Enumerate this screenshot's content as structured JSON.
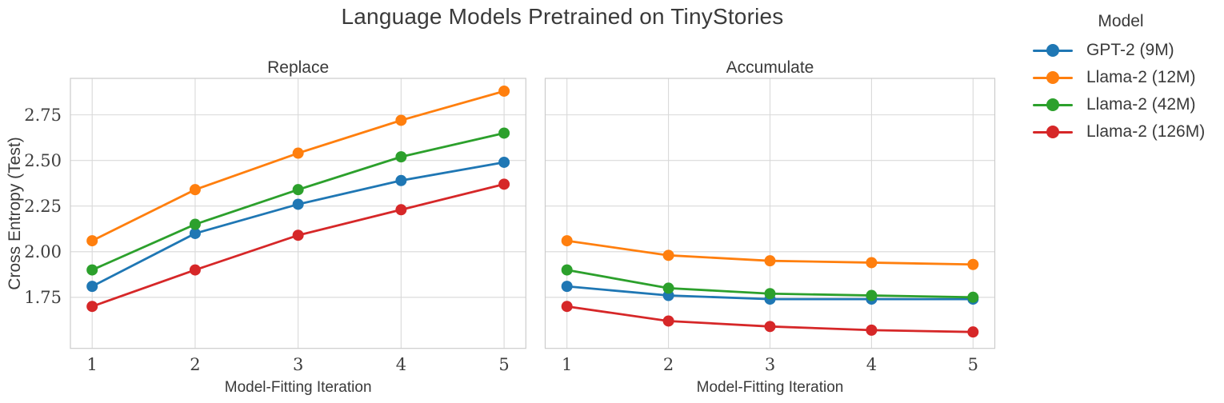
{
  "title": "Language Models Pretrained on TinyStories",
  "ylabel": "Cross Entropy (Test)",
  "legend": {
    "title": "Model",
    "entries": [
      {
        "label": "GPT-2 (9M)",
        "color": "#1f77b4"
      },
      {
        "label": "Llama-2 (12M)",
        "color": "#ff7f0e"
      },
      {
        "label": "Llama-2 (42M)",
        "color": "#2ca02c"
      },
      {
        "label": "Llama-2 (126M)",
        "color": "#d62728"
      }
    ]
  },
  "style": {
    "grid_color": "#d9d9d9",
    "spine_color": "#cccccc",
    "background": "#ffffff",
    "grid_on": true,
    "legend_position": "upper right, outside axes"
  },
  "chart_data": [
    {
      "type": "line",
      "title": "Replace",
      "xlabel": "Model-Fitting Iteration",
      "ylabel": "Cross Entropy (Test)",
      "x": [
        1,
        2,
        3,
        4,
        5
      ],
      "xtick_labels": [
        "1",
        "2",
        "3",
        "4",
        "5"
      ],
      "ylim": [
        1.47,
        2.95
      ],
      "yticks": [
        1.75,
        2.0,
        2.25,
        2.5,
        2.75
      ],
      "ytick_labels": [
        "1.75",
        "2.00",
        "2.25",
        "2.50",
        "2.75"
      ],
      "show_ytick_labels": true,
      "series": [
        {
          "name": "GPT-2 (9M)",
          "color": "#1f77b4",
          "values": [
            1.81,
            2.1,
            2.26,
            2.39,
            2.49
          ]
        },
        {
          "name": "Llama-2 (12M)",
          "color": "#ff7f0e",
          "values": [
            2.06,
            2.34,
            2.54,
            2.72,
            2.88
          ]
        },
        {
          "name": "Llama-2 (42M)",
          "color": "#2ca02c",
          "values": [
            1.9,
            2.15,
            2.34,
            2.52,
            2.65
          ]
        },
        {
          "name": "Llama-2 (126M)",
          "color": "#d62728",
          "values": [
            1.7,
            1.9,
            2.09,
            2.23,
            2.37
          ]
        }
      ]
    },
    {
      "type": "line",
      "title": "Accumulate",
      "xlabel": "Model-Fitting Iteration",
      "ylabel": "Cross Entropy (Test)",
      "x": [
        1,
        2,
        3,
        4,
        5
      ],
      "xtick_labels": [
        "1",
        "2",
        "3",
        "4",
        "5"
      ],
      "ylim": [
        1.47,
        2.95
      ],
      "yticks": [
        1.75,
        2.0,
        2.25,
        2.5,
        2.75
      ],
      "ytick_labels": [
        "1.75",
        "2.00",
        "2.25",
        "2.50",
        "2.75"
      ],
      "show_ytick_labels": false,
      "series": [
        {
          "name": "GPT-2 (9M)",
          "color": "#1f77b4",
          "values": [
            1.81,
            1.76,
            1.74,
            1.74,
            1.74
          ]
        },
        {
          "name": "Llama-2 (12M)",
          "color": "#ff7f0e",
          "values": [
            2.06,
            1.98,
            1.95,
            1.94,
            1.93
          ]
        },
        {
          "name": "Llama-2 (42M)",
          "color": "#2ca02c",
          "values": [
            1.9,
            1.8,
            1.77,
            1.76,
            1.75
          ]
        },
        {
          "name": "Llama-2 (126M)",
          "color": "#d62728",
          "values": [
            1.7,
            1.62,
            1.59,
            1.57,
            1.56
          ]
        }
      ]
    }
  ]
}
